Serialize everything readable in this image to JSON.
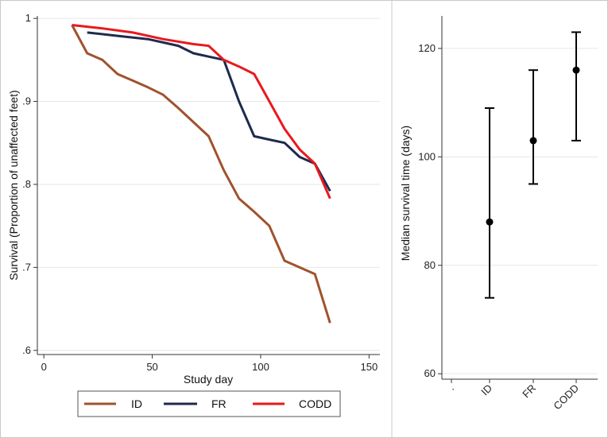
{
  "chart_data": [
    {
      "type": "line",
      "xlabel": "Study day",
      "ylabel": "Survival (Proportion of unaffected feet)",
      "xlim": [
        -3,
        155
      ],
      "ylim": [
        0.595,
        1.003
      ],
      "xticks": [
        0,
        50,
        100,
        150
      ],
      "xtick_labels": [
        "0",
        "50",
        "100",
        "150"
      ],
      "yticks": [
        0.6,
        0.7,
        0.8,
        0.9,
        1.0
      ],
      "ytick_labels": [
        ".6",
        ".7",
        ".8",
        ".9",
        "1"
      ],
      "legend": [
        "ID",
        "FR",
        "CODD"
      ],
      "legend_position": "bottom",
      "series": [
        {
          "name": "ID",
          "color": "#a0522d",
          "x": [
            13,
            20,
            27,
            34,
            41,
            48,
            55,
            62,
            69,
            76,
            83,
            90,
            97,
            104,
            111,
            118,
            125,
            132
          ],
          "y": [
            0.992,
            0.958,
            0.95,
            0.933,
            0.925,
            0.917,
            0.908,
            0.892,
            0.875,
            0.858,
            0.817,
            0.783,
            0.767,
            0.75,
            0.708,
            0.7,
            0.692,
            0.633
          ]
        },
        {
          "name": "FR",
          "color": "#1f2a4d",
          "x": [
            20,
            34,
            48,
            55,
            62,
            69,
            76,
            83,
            90,
            97,
            104,
            111,
            118,
            125,
            132
          ],
          "y": [
            0.983,
            0.979,
            0.975,
            0.971,
            0.967,
            0.958,
            0.954,
            0.95,
            0.9,
            0.858,
            0.854,
            0.85,
            0.833,
            0.825,
            0.792
          ]
        },
        {
          "name": "CODD",
          "color": "#e8191e",
          "x": [
            13,
            27,
            41,
            55,
            69,
            76,
            83,
            90,
            97,
            104,
            111,
            118,
            125,
            132
          ],
          "y": [
            0.992,
            0.988,
            0.983,
            0.975,
            0.969,
            0.967,
            0.95,
            0.942,
            0.933,
            0.9,
            0.867,
            0.842,
            0.825,
            0.783
          ]
        }
      ]
    },
    {
      "type": "scatter",
      "ylabel": "Median survival time (days)",
      "categories": [
        ".",
        "ID",
        "FR",
        "CODD"
      ],
      "ylim": [
        59,
        126
      ],
      "yticks": [
        60,
        80,
        100,
        120
      ],
      "ytick_labels": [
        "60",
        "80",
        "100",
        "120"
      ],
      "points": [
        {
          "category": "ID",
          "median": 88,
          "lower": 74,
          "upper": 109
        },
        {
          "category": "FR",
          "median": 103,
          "lower": 95,
          "upper": 116
        },
        {
          "category": "CODD",
          "median": 116,
          "lower": 103,
          "upper": 123
        }
      ]
    }
  ]
}
